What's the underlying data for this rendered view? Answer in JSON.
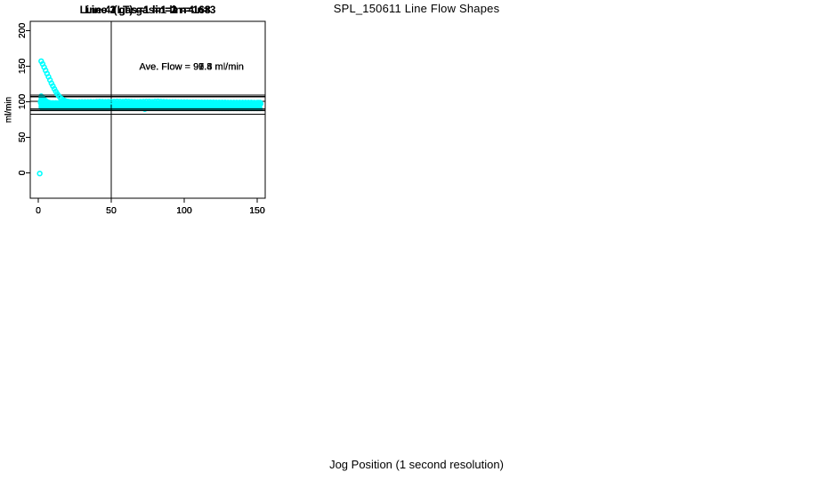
{
  "page_title": "SPL_150611  Line Flow Shapes",
  "xlabel": "Jog Position (1 second resolution)",
  "colors": {
    "points": "#00ffff",
    "axis": "#000000",
    "background": "#ffffff",
    "text": "#000000"
  },
  "chart_data": [
    {
      "type": "scatter",
      "title": "Line 1 gas=1 lin=1 n=168",
      "annotation": "Ave. Flow =  91.3  ml/min",
      "ave_flow_ml_min": 91.3,
      "n": 168,
      "ylabel": "ml/min",
      "x_ticks": [
        0,
        50,
        100,
        150
      ],
      "y_ticks": [
        0,
        50,
        100,
        150,
        200
      ],
      "xlim": [
        -5.5,
        155.5
      ],
      "ylim": [
        -35.75,
        213
      ],
      "ref_lines_y": [
        100.4,
        82.2
      ],
      "ref_line_x": 50,
      "annotation_xy": [
        105,
        150
      ],
      "points": [
        [
          2,
          94
        ],
        [
          2,
          92
        ],
        [
          3,
          92.4
        ],
        [
          4,
          91.9
        ],
        [
          5,
          91.7
        ],
        [
          6,
          91.6
        ],
        [
          8,
          91.5
        ],
        [
          10,
          91.5
        ],
        [
          12,
          91.5
        ],
        [
          14,
          91.4
        ],
        [
          16,
          91.4
        ],
        [
          18,
          91.4
        ],
        [
          20,
          91.4
        ],
        [
          22,
          91.3
        ],
        [
          24,
          91.3
        ],
        [
          26,
          91.3
        ],
        [
          28,
          91.3
        ],
        [
          30,
          91.2
        ],
        [
          32,
          91.2
        ],
        [
          34,
          91.2
        ],
        [
          36,
          91.2
        ],
        [
          38,
          91.1
        ],
        [
          40,
          91.1
        ],
        [
          41,
          92.8
        ],
        [
          42,
          91.1
        ],
        [
          44,
          91.1
        ],
        [
          46,
          91.1
        ],
        [
          48,
          91.0
        ],
        [
          50,
          91.0
        ],
        [
          52,
          91.0
        ],
        [
          54,
          91.0
        ],
        [
          56,
          91.0
        ],
        [
          58,
          90.9
        ],
        [
          60,
          90.9
        ],
        [
          62,
          90.9
        ],
        [
          64,
          90.9
        ],
        [
          66,
          90.9
        ],
        [
          68,
          90.8
        ],
        [
          70,
          90.8
        ],
        [
          72,
          90.8
        ],
        [
          73,
          89.2
        ],
        [
          74,
          90.8
        ],
        [
          76,
          90.8
        ],
        [
          78,
          90.8
        ],
        [
          80,
          90.7
        ],
        [
          82,
          90.7
        ],
        [
          84,
          90.7
        ],
        [
          86,
          90.7
        ],
        [
          88,
          90.7
        ],
        [
          90,
          90.7
        ],
        [
          92,
          90.6
        ],
        [
          94,
          90.6
        ],
        [
          96,
          90.6
        ],
        [
          98,
          90.6
        ],
        [
          100,
          90.6
        ],
        [
          102,
          90.6
        ],
        [
          104,
          90.6
        ],
        [
          106,
          90.5
        ],
        [
          108,
          90.5
        ],
        [
          110,
          90.5
        ],
        [
          112,
          90.5
        ],
        [
          114,
          90.5
        ],
        [
          116,
          90.5
        ],
        [
          118,
          90.5
        ],
        [
          120,
          90.5
        ],
        [
          122,
          90.5
        ],
        [
          124,
          90.4
        ],
        [
          126,
          90.4
        ],
        [
          128,
          90.4
        ],
        [
          130,
          90.4
        ],
        [
          132,
          90.4
        ],
        [
          134,
          90.4
        ],
        [
          136,
          90.4
        ],
        [
          138,
          90.4
        ],
        [
          140,
          90.4
        ],
        [
          142,
          90.4
        ],
        [
          144,
          90.3
        ],
        [
          146,
          90.3
        ],
        [
          148,
          90.3
        ],
        [
          150,
          90.3
        ],
        [
          152,
          90.3
        ]
      ]
    },
    {
      "type": "scatter",
      "title": "Line 2 gas=1 lin=2 n=168",
      "annotation": "Ave. Flow =  97.4  ml/min",
      "ave_flow_ml_min": 97.4,
      "n": 168,
      "ylabel": "ml/min",
      "x_ticks": [
        0,
        50,
        100,
        150
      ],
      "y_ticks": [
        0,
        50,
        100,
        150,
        200
      ],
      "xlim": [
        -5.5,
        155.5
      ],
      "ylim": [
        -35.75,
        213
      ],
      "ref_lines_y": [
        107.1,
        87.7
      ],
      "ref_line_x": 50,
      "annotation_xy": [
        105,
        150
      ],
      "points": [
        [
          2,
          108
        ],
        [
          2,
          105.5
        ],
        [
          3,
          106.3
        ],
        [
          4,
          103.6
        ],
        [
          5,
          101.6
        ],
        [
          6,
          100.2
        ],
        [
          7,
          99.2
        ],
        [
          8,
          98.5
        ],
        [
          9,
          98.0
        ],
        [
          10,
          97.8
        ],
        [
          11,
          97.7
        ],
        [
          12,
          97.6
        ],
        [
          14,
          97.6
        ],
        [
          16,
          97.5
        ],
        [
          18,
          97.5
        ],
        [
          20,
          97.5
        ],
        [
          22,
          97.4
        ],
        [
          24,
          97.4
        ],
        [
          26,
          97.4
        ],
        [
          28,
          97.4
        ],
        [
          30,
          97.4
        ],
        [
          32,
          97.4
        ],
        [
          34,
          97.4
        ],
        [
          36,
          97.4
        ],
        [
          38,
          97.4
        ],
        [
          40,
          97.4
        ],
        [
          42,
          97.4
        ],
        [
          44,
          97.4
        ],
        [
          46,
          97.4
        ],
        [
          48,
          97.4
        ],
        [
          50,
          97.4
        ],
        [
          52,
          97.4
        ],
        [
          54,
          97.4
        ],
        [
          56,
          97.4
        ],
        [
          58,
          97.4
        ],
        [
          60,
          97.3
        ],
        [
          62,
          97.3
        ],
        [
          64,
          97.3
        ],
        [
          66,
          97.3
        ],
        [
          68,
          97.3
        ],
        [
          70,
          98.3
        ],
        [
          70,
          97.3
        ],
        [
          72,
          97.3
        ],
        [
          74,
          97.3
        ],
        [
          76,
          97.3
        ],
        [
          78,
          97.3
        ],
        [
          80,
          97.3
        ],
        [
          82,
          97.3
        ],
        [
          84,
          97.3
        ],
        [
          86,
          97.3
        ],
        [
          88,
          97.3
        ],
        [
          90,
          97.3
        ],
        [
          92,
          97.3
        ],
        [
          94,
          97.3
        ],
        [
          96,
          97.3
        ],
        [
          98,
          97.3
        ],
        [
          100,
          98.2
        ],
        [
          100,
          97.3
        ],
        [
          102,
          97.3
        ],
        [
          104,
          97.3
        ],
        [
          106,
          97.3
        ],
        [
          108,
          97.3
        ],
        [
          110,
          97.3
        ],
        [
          112,
          97.3
        ],
        [
          114,
          97.3
        ],
        [
          116,
          97.3
        ],
        [
          118,
          95.9
        ],
        [
          118,
          97.3
        ],
        [
          120,
          97.3
        ],
        [
          122,
          97.3
        ],
        [
          124,
          97.3
        ],
        [
          126,
          97.3
        ],
        [
          128,
          97.3
        ],
        [
          130,
          97.2
        ],
        [
          132,
          97.2
        ],
        [
          134,
          97.2
        ],
        [
          136,
          96.1
        ],
        [
          136,
          97.2
        ],
        [
          138,
          97.2
        ],
        [
          140,
          97.2
        ],
        [
          142,
          97.2
        ],
        [
          144,
          97.2
        ],
        [
          146,
          97.2
        ],
        [
          148,
          97.2
        ],
        [
          150,
          96.2
        ],
        [
          150,
          97.2
        ],
        [
          152,
          97.2
        ]
      ]
    },
    {
      "type": "scatter",
      "title": "Line 3 gas=1 lin=3 n=168",
      "annotation": "Ave. Flow =  96.8  ml/min",
      "ave_flow_ml_min": 96.8,
      "n": 168,
      "ylabel": "ml/min",
      "x_ticks": [
        0,
        50,
        100,
        150
      ],
      "y_ticks": [
        0,
        50,
        100,
        150,
        200
      ],
      "xlim": [
        -5.5,
        155.5
      ],
      "ylim": [
        -35.75,
        213
      ],
      "ref_lines_y": [
        106.5,
        87.1
      ],
      "ref_line_x": 50,
      "annotation_xy": [
        105,
        150
      ],
      "points": [
        [
          2,
          100.5
        ],
        [
          2,
          98.8
        ],
        [
          3,
          99.8
        ],
        [
          4,
          99.0
        ],
        [
          5,
          98.3
        ],
        [
          6,
          97.9
        ],
        [
          7,
          97.7
        ],
        [
          8,
          97.6
        ],
        [
          10,
          97.5
        ],
        [
          12,
          97.5
        ],
        [
          14,
          97.4
        ],
        [
          16,
          97.4
        ],
        [
          18,
          97.4
        ],
        [
          20,
          97.4
        ],
        [
          22,
          97.4
        ],
        [
          24,
          97.4
        ],
        [
          26,
          97.4
        ],
        [
          28,
          97.4
        ],
        [
          30,
          97.4
        ],
        [
          32,
          97.4
        ],
        [
          34,
          97.4
        ],
        [
          36,
          97.4
        ],
        [
          38,
          97.4
        ],
        [
          40,
          97.4
        ],
        [
          42,
          97.3
        ],
        [
          44,
          97.3
        ],
        [
          46,
          97.3
        ],
        [
          48,
          97.3
        ],
        [
          50,
          97.3
        ],
        [
          52,
          97.3
        ],
        [
          54,
          97.3
        ],
        [
          56,
          97.3
        ],
        [
          58,
          97.3
        ],
        [
          60,
          97.3
        ],
        [
          62,
          97.3
        ],
        [
          64,
          97.3
        ],
        [
          66,
          97.3
        ],
        [
          68,
          97.3
        ],
        [
          70,
          97.3
        ],
        [
          72,
          97.2
        ],
        [
          74,
          97.2
        ],
        [
          76,
          97.2
        ],
        [
          78,
          97.2
        ],
        [
          80,
          97.2
        ],
        [
          82,
          97.2
        ],
        [
          84,
          97.2
        ],
        [
          86,
          97.2
        ],
        [
          88,
          97.2
        ],
        [
          90,
          97.2
        ],
        [
          92,
          97.2
        ],
        [
          94,
          97.2
        ],
        [
          96,
          97.2
        ],
        [
          98,
          97.2
        ],
        [
          100,
          97.2
        ],
        [
          102,
          97.2
        ],
        [
          104,
          97.2
        ],
        [
          106,
          97.2
        ],
        [
          108,
          97.2
        ],
        [
          110,
          97.2
        ],
        [
          112,
          97.2
        ],
        [
          114,
          97.2
        ],
        [
          116,
          97.2
        ],
        [
          118,
          97.2
        ],
        [
          120,
          97.2
        ],
        [
          122,
          97.2
        ],
        [
          124,
          97.2
        ],
        [
          126,
          97.2
        ],
        [
          128,
          97.2
        ],
        [
          130,
          97.2
        ],
        [
          132,
          97.1
        ],
        [
          134,
          97.1
        ],
        [
          136,
          97.1
        ],
        [
          138,
          97.1
        ],
        [
          140,
          97.1
        ],
        [
          142,
          97.1
        ],
        [
          144,
          97.1
        ],
        [
          146,
          97.1
        ],
        [
          148,
          97.1
        ],
        [
          150,
          97.1
        ],
        [
          152,
          97.1
        ]
      ]
    },
    {
      "type": "scatter",
      "title": "Line 4 (LT) gas=1 lin=4 n=3",
      "annotation": "Ave. Flow =  99.5  ml/min",
      "ave_flow_ml_min": 99.5,
      "n": 3,
      "ylabel": "ml/min",
      "x_ticks": [
        0,
        50,
        100,
        150
      ],
      "y_ticks": [
        0,
        50,
        100,
        150,
        200
      ],
      "xlim": [
        -5.5,
        155.5
      ],
      "ylim": [
        -35.75,
        213
      ],
      "ref_lines_y": [
        109.5,
        89.6
      ],
      "ref_line_x": 50,
      "annotation_xy": [
        105,
        150
      ],
      "points": [
        [
          1,
          -1
        ],
        [
          2,
          157
        ],
        [
          3,
          153
        ],
        [
          4,
          148.5
        ],
        [
          5,
          144
        ],
        [
          6,
          139.5
        ],
        [
          7,
          135
        ],
        [
          8,
          130.5
        ],
        [
          9,
          126
        ],
        [
          10,
          122
        ],
        [
          11,
          118
        ],
        [
          12,
          114.3
        ],
        [
          13,
          111
        ],
        [
          14,
          108.2
        ],
        [
          15,
          105.8
        ],
        [
          16,
          104
        ],
        [
          17,
          102.6
        ],
        [
          18,
          101.5
        ],
        [
          19,
          100.7
        ],
        [
          20,
          100.2
        ],
        [
          21,
          99.9
        ],
        [
          22,
          99.7
        ],
        [
          23,
          99.6
        ],
        [
          24,
          99.5
        ],
        [
          25,
          99.5
        ],
        [
          26,
          99.5
        ],
        [
          28,
          99.6
        ],
        [
          30,
          99.6
        ],
        [
          32,
          99.7
        ],
        [
          34,
          99.7
        ],
        [
          36,
          99.8
        ],
        [
          38,
          99.7
        ],
        [
          40,
          100.0
        ],
        [
          42,
          100.1
        ],
        [
          44,
          99.9
        ],
        [
          46,
          99.8
        ],
        [
          48,
          99.9
        ],
        [
          50,
          100.0
        ],
        [
          52,
          100.2
        ],
        [
          54,
          100.4
        ],
        [
          56,
          100.3
        ],
        [
          58,
          100.1
        ],
        [
          60,
          100.4
        ],
        [
          62,
          100.2
        ],
        [
          64,
          99.9
        ],
        [
          66,
          99.8
        ],
        [
          68,
          99.7
        ],
        [
          70,
          99.9
        ],
        [
          72,
          100.1
        ],
        [
          74,
          100.3
        ],
        [
          76,
          100.2
        ],
        [
          78,
          100.0
        ],
        [
          80,
          100.2
        ],
        [
          82,
          100.4
        ],
        [
          84,
          100.1
        ],
        [
          86,
          99.9
        ],
        [
          88,
          99.8
        ],
        [
          90,
          99.7
        ],
        [
          92,
          99.6
        ],
        [
          94,
          99.6
        ],
        [
          96,
          99.5
        ],
        [
          98,
          99.5
        ],
        [
          100,
          99.4
        ],
        [
          102,
          99.4
        ],
        [
          104,
          99.3
        ],
        [
          106,
          99.3
        ],
        [
          108,
          99.3
        ],
        [
          110,
          99.2
        ],
        [
          112,
          99.2
        ],
        [
          114,
          99.2
        ],
        [
          116,
          99.1
        ],
        [
          118,
          99.1
        ],
        [
          120,
          99.1
        ],
        [
          122,
          99.0
        ],
        [
          124,
          99.0
        ],
        [
          126,
          99.0
        ],
        [
          128,
          99.0
        ],
        [
          130,
          98.9
        ],
        [
          132,
          98.9
        ],
        [
          134,
          98.9
        ],
        [
          136,
          98.9
        ],
        [
          138,
          98.8
        ],
        [
          140,
          98.8
        ],
        [
          142,
          98.8
        ],
        [
          144,
          98.8
        ],
        [
          146,
          98.8
        ],
        [
          148,
          98.7
        ],
        [
          150,
          98.7
        ],
        [
          151,
          98.7
        ],
        [
          152,
          98.7
        ]
      ]
    }
  ]
}
